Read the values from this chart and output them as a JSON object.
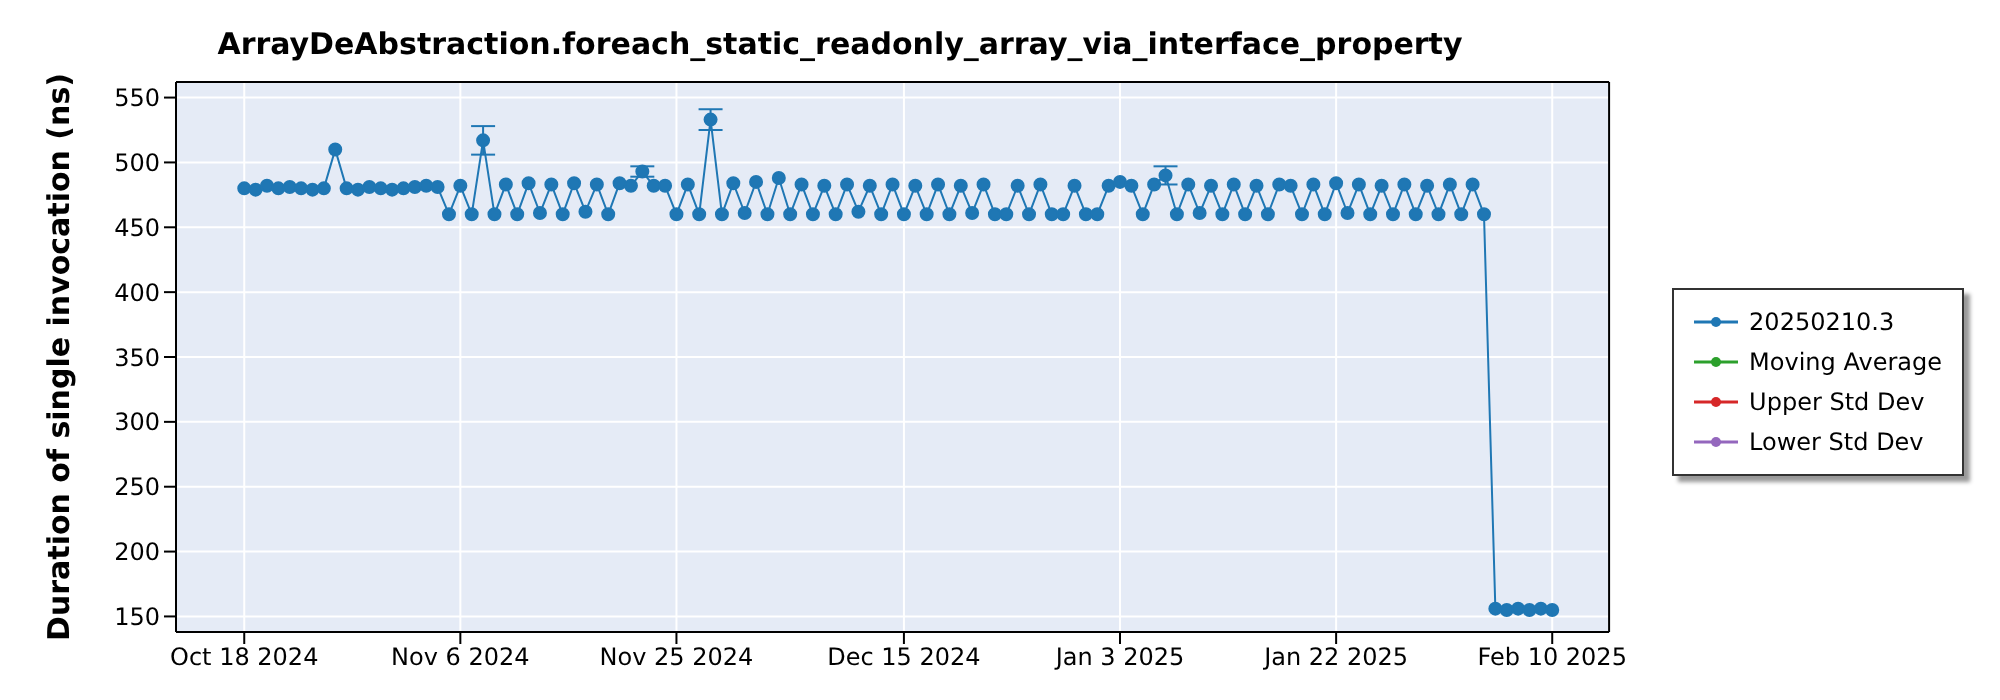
{
  "chart_data": {
    "type": "line",
    "title": "ArrayDeAbstraction.foreach_static_readonly_array_via_interface_property",
    "ylabel": "Duration of single invocation (ns)",
    "x": [
      "2024-10-18",
      "2024-10-19",
      "2024-10-20",
      "2024-10-21",
      "2024-10-22",
      "2024-10-23",
      "2024-10-24",
      "2024-10-25",
      "2024-10-26",
      "2024-10-27",
      "2024-10-28",
      "2024-10-29",
      "2024-10-30",
      "2024-10-31",
      "2024-11-01",
      "2024-11-02",
      "2024-11-03",
      "2024-11-04",
      "2024-11-05",
      "2024-11-06",
      "2024-11-07",
      "2024-11-08",
      "2024-11-09",
      "2024-11-10",
      "2024-11-11",
      "2024-11-12",
      "2024-11-13",
      "2024-11-14",
      "2024-11-15",
      "2024-11-16",
      "2024-11-17",
      "2024-11-18",
      "2024-11-19",
      "2024-11-20",
      "2024-11-21",
      "2024-11-22",
      "2024-11-23",
      "2024-11-24",
      "2024-11-25",
      "2024-11-26",
      "2024-11-27",
      "2024-11-28",
      "2024-11-29",
      "2024-11-30",
      "2024-12-01",
      "2024-12-02",
      "2024-12-03",
      "2024-12-04",
      "2024-12-05",
      "2024-12-06",
      "2024-12-07",
      "2024-12-08",
      "2024-12-09",
      "2024-12-10",
      "2024-12-11",
      "2024-12-12",
      "2024-12-13",
      "2024-12-14",
      "2024-12-15",
      "2024-12-16",
      "2024-12-17",
      "2024-12-18",
      "2024-12-19",
      "2024-12-20",
      "2024-12-21",
      "2024-12-22",
      "2024-12-23",
      "2024-12-24",
      "2024-12-25",
      "2024-12-26",
      "2024-12-27",
      "2024-12-28",
      "2024-12-29",
      "2024-12-30",
      "2024-12-31",
      "2025-01-01",
      "2025-01-02",
      "2025-01-03",
      "2025-01-04",
      "2025-01-05",
      "2025-01-06",
      "2025-01-07",
      "2025-01-08",
      "2025-01-09",
      "2025-01-10",
      "2025-01-11",
      "2025-01-12",
      "2025-01-13",
      "2025-01-14",
      "2025-01-15",
      "2025-01-16",
      "2025-01-17",
      "2025-01-18",
      "2025-01-19",
      "2025-01-20",
      "2025-01-21",
      "2025-01-22",
      "2025-01-23",
      "2025-01-24",
      "2025-01-25",
      "2025-01-26",
      "2025-01-27",
      "2025-01-28",
      "2025-01-29",
      "2025-01-30",
      "2025-01-31",
      "2025-02-01",
      "2025-02-02",
      "2025-02-03",
      "2025-02-04",
      "2025-02-05",
      "2025-02-06",
      "2025-02-07",
      "2025-02-08",
      "2025-02-09",
      "2025-02-10"
    ],
    "series": [
      {
        "name": "20250210.3",
        "color": "#1f77b4",
        "values": [
          480,
          479,
          482,
          480,
          481,
          480,
          479,
          480,
          510,
          480,
          479,
          481,
          480,
          479,
          480,
          481,
          482,
          481,
          460,
          482,
          460,
          517,
          460,
          483,
          460,
          484,
          461,
          483,
          460,
          484,
          462,
          483,
          460,
          484,
          482,
          493,
          482,
          482,
          460,
          483,
          460,
          533,
          460,
          484,
          461,
          485,
          460,
          488,
          460,
          483,
          460,
          482,
          460,
          483,
          462,
          482,
          460,
          483,
          460,
          482,
          460,
          483,
          460,
          482,
          461,
          483,
          460,
          460,
          482,
          460,
          483,
          460,
          460,
          482,
          460,
          460,
          482,
          485,
          482,
          460,
          483,
          490,
          460,
          483,
          461,
          482,
          460,
          483,
          460,
          482,
          460,
          483,
          482,
          460,
          483,
          460,
          484,
          461,
          483,
          460,
          482,
          460,
          483,
          460,
          482,
          460,
          483,
          460,
          483,
          460,
          156,
          155,
          156,
          155,
          156,
          155
        ],
        "errors": [
          null,
          null,
          null,
          null,
          null,
          null,
          null,
          null,
          null,
          null,
          null,
          null,
          null,
          null,
          null,
          null,
          null,
          null,
          null,
          null,
          null,
          11,
          null,
          null,
          null,
          null,
          null,
          null,
          null,
          null,
          null,
          null,
          null,
          null,
          null,
          4,
          null,
          null,
          null,
          null,
          null,
          8,
          null,
          null,
          null,
          null,
          null,
          null,
          null,
          null,
          null,
          null,
          null,
          null,
          null,
          null,
          null,
          null,
          null,
          null,
          null,
          null,
          null,
          null,
          null,
          null,
          null,
          null,
          null,
          null,
          null,
          null,
          null,
          null,
          null,
          null,
          null,
          null,
          null,
          null,
          null,
          7,
          null,
          null,
          null,
          null,
          null,
          null,
          null,
          null,
          null,
          null,
          null,
          null,
          null,
          null,
          null,
          null,
          null,
          null,
          null,
          null,
          null,
          null,
          null,
          null,
          null,
          null,
          null,
          null,
          null,
          null,
          null,
          null,
          null,
          null
        ]
      },
      {
        "name": "Moving Average",
        "color": "#2ca02c",
        "values": [
          null,
          null,
          null,
          null,
          null,
          null,
          null,
          null,
          null,
          null,
          null,
          null,
          null,
          null,
          null,
          null,
          null,
          null,
          null,
          null,
          null,
          null,
          null,
          null,
          null,
          null,
          null,
          null,
          null,
          null,
          null,
          null,
          null,
          null,
          null,
          null,
          null,
          null,
          null,
          null,
          null,
          null,
          null,
          null,
          null,
          null,
          null,
          null,
          null,
          null,
          null,
          null,
          null,
          null,
          null,
          null,
          null,
          null,
          null,
          null,
          null,
          null,
          null,
          null,
          null,
          null,
          null,
          null,
          null,
          null,
          null,
          null,
          null,
          null,
          null,
          null,
          null,
          null,
          null,
          null,
          null,
          null,
          null,
          null,
          null,
          null,
          null,
          null,
          null,
          null,
          null,
          null,
          null,
          null,
          null,
          null,
          null,
          null,
          null,
          null,
          null,
          null,
          null,
          null,
          null,
          null,
          null,
          null,
          null,
          null,
          null,
          null,
          null,
          null,
          null,
          null
        ]
      },
      {
        "name": "Upper Std Dev",
        "color": "#d62728",
        "values": [
          null,
          null,
          null,
          null,
          null,
          null,
          null,
          null,
          null,
          null,
          null,
          null,
          null,
          null,
          null,
          null,
          null,
          null,
          null,
          null,
          null,
          null,
          null,
          null,
          null,
          null,
          null,
          null,
          null,
          null,
          null,
          null,
          null,
          null,
          null,
          null,
          null,
          null,
          null,
          null,
          null,
          null,
          null,
          null,
          null,
          null,
          null,
          null,
          null,
          null,
          null,
          null,
          null,
          null,
          null,
          null,
          null,
          null,
          null,
          null,
          null,
          null,
          null,
          null,
          null,
          null,
          null,
          null,
          null,
          null,
          null,
          null,
          null,
          null,
          null,
          null,
          null,
          null,
          null,
          null,
          null,
          null,
          null,
          null,
          null,
          null,
          null,
          null,
          null,
          null,
          null,
          null,
          null,
          null,
          null,
          null,
          null,
          null,
          null,
          null,
          null,
          null,
          null,
          null,
          null,
          null,
          null,
          null,
          null,
          null,
          null,
          null,
          null,
          null,
          null,
          null
        ]
      },
      {
        "name": "Lower Std Dev",
        "color": "#9467bd",
        "values": [
          null,
          null,
          null,
          null,
          null,
          null,
          null,
          null,
          null,
          null,
          null,
          null,
          null,
          null,
          null,
          null,
          null,
          null,
          null,
          null,
          null,
          null,
          null,
          null,
          null,
          null,
          null,
          null,
          null,
          null,
          null,
          null,
          null,
          null,
          null,
          null,
          null,
          null,
          null,
          null,
          null,
          null,
          null,
          null,
          null,
          null,
          null,
          null,
          null,
          null,
          null,
          null,
          null,
          null,
          null,
          null,
          null,
          null,
          null,
          null,
          null,
          null,
          null,
          null,
          null,
          null,
          null,
          null,
          null,
          null,
          null,
          null,
          null,
          null,
          null,
          null,
          null,
          null,
          null,
          null,
          null,
          null,
          null,
          null,
          null,
          null,
          null,
          null,
          null,
          null,
          null,
          null,
          null,
          null,
          null,
          null,
          null,
          null,
          null,
          null,
          null,
          null,
          null,
          null,
          null,
          null,
          null,
          null,
          null,
          null,
          null,
          null,
          null,
          null,
          null,
          null
        ]
      }
    ],
    "xlim": [
      "2024-10-12",
      "2025-02-15"
    ],
    "xticks": [
      {
        "value": "2024-10-18",
        "label": "Oct 18 2024"
      },
      {
        "value": "2024-11-06",
        "label": "Nov 6 2024"
      },
      {
        "value": "2024-11-25",
        "label": "Nov 25 2024"
      },
      {
        "value": "2024-12-15",
        "label": "Dec 15 2024"
      },
      {
        "value": "2025-01-03",
        "label": "Jan 3 2025"
      },
      {
        "value": "2025-01-22",
        "label": "Jan 22 2025"
      },
      {
        "value": "2025-02-10",
        "label": "Feb 10 2025"
      }
    ],
    "ylim": [
      138,
      562
    ],
    "yticks": [
      150,
      200,
      250,
      300,
      350,
      400,
      450,
      500,
      550
    ],
    "grid": true,
    "legend": "right",
    "marker": "circle",
    "line_style": "solid"
  }
}
